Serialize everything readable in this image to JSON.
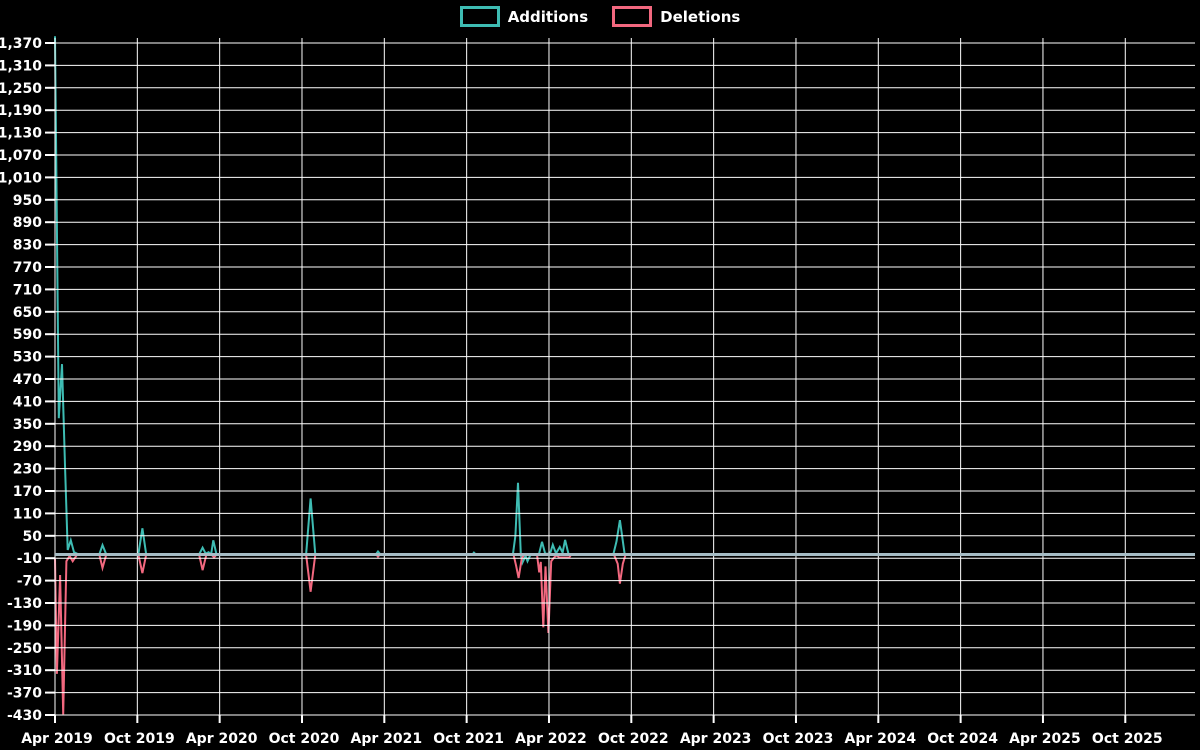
{
  "legend": {
    "items": [
      {
        "label": "Additions",
        "color": "#3ebcb3"
      },
      {
        "label": "Deletions",
        "color": "#f2687f"
      }
    ]
  },
  "chart_data": {
    "type": "line",
    "title": "",
    "xlabel": "",
    "ylabel": "",
    "background_color": "#000000",
    "grid": true,
    "grid_color": "#ffffff",
    "text_color": "#ffffff",
    "zero_line_color": "#a6bcc5",
    "legend_position": "top-center",
    "x_tick_labels": [
      "Apr 2019",
      "Oct 2019",
      "Apr 2020",
      "Oct 2020",
      "Apr 2021",
      "Oct 2021",
      "Apr 2022",
      "Oct 2022",
      "Apr 2023",
      "Oct 2023",
      "Apr 2024",
      "Oct 2024",
      "Apr 2025",
      "Oct 2025"
    ],
    "y_tick_values": [
      1370,
      1310,
      1250,
      1190,
      1130,
      1070,
      1010,
      950,
      890,
      830,
      770,
      710,
      650,
      590,
      530,
      470,
      410,
      350,
      290,
      230,
      170,
      110,
      50,
      -10,
      -70,
      -130,
      -190,
      -250,
      -310,
      -370,
      -430
    ],
    "y_min": -430,
    "y_max": 1370,
    "y_step": 60,
    "x_unit": "weeks since Apr 2019",
    "weeks_per_x_tick": 26,
    "x_total_weeks": 360,
    "series": [
      {
        "name": "Additions",
        "color": "#3ebcb3",
        "points": [
          [
            0,
            1388
          ],
          [
            1.2,
            365
          ],
          [
            2.2,
            510
          ],
          [
            3.2,
            230
          ],
          [
            4,
            12
          ],
          [
            5,
            38
          ],
          [
            6,
            6
          ],
          [
            7.5,
            0
          ],
          [
            14,
            0
          ],
          [
            15,
            25
          ],
          [
            16.2,
            0
          ],
          [
            26.3,
            0
          ],
          [
            27.6,
            70
          ],
          [
            28.8,
            0
          ],
          [
            45.5,
            0
          ],
          [
            46.6,
            18
          ],
          [
            47.6,
            2
          ],
          [
            48.5,
            6
          ],
          [
            49.3,
            0
          ],
          [
            50,
            38
          ],
          [
            51,
            0
          ],
          [
            79.3,
            0
          ],
          [
            80.7,
            150
          ],
          [
            82.2,
            0
          ],
          [
            101.3,
            0
          ],
          [
            102,
            8
          ],
          [
            102.8,
            0
          ],
          [
            131.8,
            0
          ],
          [
            132.3,
            5
          ],
          [
            132.9,
            0
          ],
          [
            144.6,
            0
          ],
          [
            145.4,
            50
          ],
          [
            146.2,
            192
          ],
          [
            147.1,
            0
          ],
          [
            147.6,
            -22
          ],
          [
            148.6,
            -4
          ],
          [
            149.2,
            -18
          ],
          [
            150.2,
            0
          ],
          [
            152.8,
            0
          ],
          [
            153.8,
            34
          ],
          [
            154.8,
            2
          ],
          [
            156.3,
            2
          ],
          [
            157.2,
            26
          ],
          [
            158.2,
            3
          ],
          [
            159.4,
            20
          ],
          [
            160.3,
            5
          ],
          [
            161.1,
            39
          ],
          [
            162.2,
            0
          ],
          [
            176.3,
            0
          ],
          [
            177.3,
            35
          ],
          [
            178.4,
            92
          ],
          [
            179.9,
            0
          ],
          [
            360,
            0
          ]
        ]
      },
      {
        "name": "Deletions",
        "color": "#f2687f",
        "points": [
          [
            0,
            -12
          ],
          [
            0.6,
            -320
          ],
          [
            1.6,
            -55
          ],
          [
            2.6,
            -428
          ],
          [
            3.6,
            -18
          ],
          [
            4.6,
            -4
          ],
          [
            5.6,
            -18
          ],
          [
            7,
            0
          ],
          [
            14,
            0
          ],
          [
            15,
            -36
          ],
          [
            16.2,
            0
          ],
          [
            26.3,
            0
          ],
          [
            27.6,
            -50
          ],
          [
            28.8,
            0
          ],
          [
            45.5,
            0
          ],
          [
            46.6,
            -42
          ],
          [
            47.8,
            0
          ],
          [
            49.5,
            0
          ],
          [
            50.2,
            -8
          ],
          [
            51,
            0
          ],
          [
            79.3,
            0
          ],
          [
            80.7,
            -100
          ],
          [
            82.2,
            0
          ],
          [
            101.5,
            0
          ],
          [
            102,
            -6
          ],
          [
            102.6,
            0
          ],
          [
            144.8,
            0
          ],
          [
            145.6,
            -30
          ],
          [
            146.4,
            -63
          ],
          [
            147.4,
            -10
          ],
          [
            148.2,
            0
          ],
          [
            152.2,
            0
          ],
          [
            152.9,
            -48
          ],
          [
            153.4,
            -20
          ],
          [
            154.2,
            -195
          ],
          [
            154.9,
            -32
          ],
          [
            155.8,
            -210
          ],
          [
            156.7,
            -18
          ],
          [
            157.6,
            -8
          ],
          [
            158.4,
            -2
          ],
          [
            159.2,
            -8
          ],
          [
            162.4,
            -8
          ],
          [
            163,
            0
          ],
          [
            176.5,
            0
          ],
          [
            177.7,
            -25
          ],
          [
            178.4,
            -78
          ],
          [
            179.3,
            -25
          ],
          [
            180.2,
            0
          ],
          [
            360,
            0
          ]
        ]
      }
    ]
  }
}
